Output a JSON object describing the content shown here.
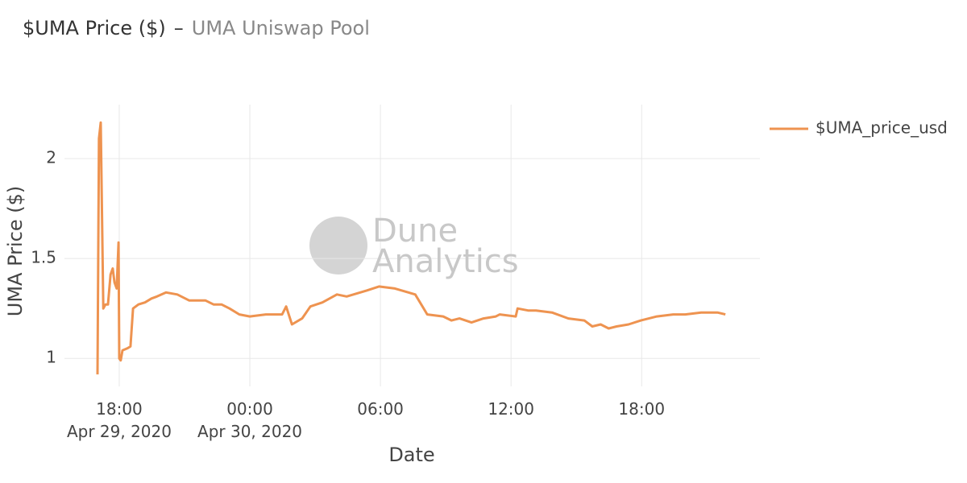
{
  "chart_data": {
    "type": "line",
    "title": "$UMA Price ($)",
    "title_separator": "–",
    "subtitle": "UMA Uniswap Pool",
    "watermark": "Dune\nAnalytics",
    "x_label": "Date",
    "y_label": "UMA Price ($)",
    "x": [
      "2020-04-29T17:00",
      "2020-04-29T17:04",
      "2020-04-29T17:09",
      "2020-04-29T17:16",
      "2020-04-29T17:22",
      "2020-04-29T17:29",
      "2020-04-29T17:36",
      "2020-04-29T17:42",
      "2020-04-29T17:47",
      "2020-04-29T17:53",
      "2020-04-29T17:58",
      "2020-04-29T18:00",
      "2020-04-29T18:04",
      "2020-04-29T18:09",
      "2020-04-29T18:22",
      "2020-04-29T18:31",
      "2020-04-29T18:38",
      "2020-04-29T18:53",
      "2020-04-29T19:11",
      "2020-04-29T19:29",
      "2020-04-29T19:44",
      "2020-04-29T20:09",
      "2020-04-29T20:40",
      "2020-04-29T21:13",
      "2020-04-29T21:58",
      "2020-04-29T22:20",
      "2020-04-29T22:42",
      "2020-04-29T23:04",
      "2020-04-29T23:31",
      "2020-04-30T00:00",
      "2020-04-30T00:44",
      "2020-04-30T01:29",
      "2020-04-30T01:40",
      "2020-04-30T01:56",
      "2020-04-30T02:24",
      "2020-04-30T02:47",
      "2020-04-30T03:20",
      "2020-04-30T04:00",
      "2020-04-30T04:27",
      "2020-04-30T05:22",
      "2020-04-30T05:56",
      "2020-04-30T06:40",
      "2020-04-30T07:36",
      "2020-04-30T08:09",
      "2020-04-30T08:53",
      "2020-04-30T09:16",
      "2020-04-30T09:38",
      "2020-04-30T10:11",
      "2020-04-30T10:44",
      "2020-04-30T11:18",
      "2020-04-30T11:29",
      "2020-04-30T12:13",
      "2020-04-30T12:18",
      "2020-04-30T12:47",
      "2020-04-30T13:09",
      "2020-04-30T13:53",
      "2020-04-30T14:38",
      "2020-04-30T15:22",
      "2020-04-30T15:44",
      "2020-04-30T16:07",
      "2020-04-30T16:29",
      "2020-04-30T16:51",
      "2020-04-30T17:24",
      "2020-04-30T17:58",
      "2020-04-30T18:42",
      "2020-04-30T19:27",
      "2020-04-30T20:00",
      "2020-04-30T20:44",
      "2020-04-30T21:29",
      "2020-04-30T21:51"
    ],
    "series": [
      {
        "name": "$UMA_price_usd",
        "color": "#ee9350",
        "values": [
          0.92,
          2.1,
          2.18,
          1.25,
          1.27,
          1.27,
          1.42,
          1.45,
          1.38,
          1.35,
          1.58,
          1.0,
          0.99,
          1.04,
          1.05,
          1.06,
          1.25,
          1.27,
          1.28,
          1.3,
          1.31,
          1.33,
          1.32,
          1.29,
          1.29,
          1.27,
          1.27,
          1.25,
          1.22,
          1.21,
          1.22,
          1.22,
          1.26,
          1.17,
          1.2,
          1.26,
          1.28,
          1.32,
          1.31,
          1.34,
          1.36,
          1.35,
          1.32,
          1.22,
          1.21,
          1.19,
          1.2,
          1.18,
          1.2,
          1.21,
          1.22,
          1.21,
          1.25,
          1.24,
          1.24,
          1.23,
          1.2,
          1.19,
          1.16,
          1.17,
          1.15,
          1.16,
          1.17,
          1.19,
          1.21,
          1.22,
          1.22,
          1.23,
          1.23,
          1.22
        ]
      }
    ],
    "xlim": [
      "2020-04-29T15:29",
      "2020-04-30T23:26"
    ],
    "xticks": [
      {
        "value": "2020-04-29T18:00",
        "label": "18:00\nApr 29, 2020"
      },
      {
        "value": "2020-04-30T00:00",
        "label": "00:00\nApr 30, 2020"
      },
      {
        "value": "2020-04-30T06:00",
        "label": "06:00"
      },
      {
        "value": "2020-04-30T12:00",
        "label": "12:00"
      },
      {
        "value": "2020-04-30T18:00",
        "label": "18:00"
      }
    ],
    "ylim": [
      0.86,
      2.27
    ],
    "yticks": [
      1,
      1.5,
      2
    ],
    "grid": true,
    "legend": "top-right"
  }
}
